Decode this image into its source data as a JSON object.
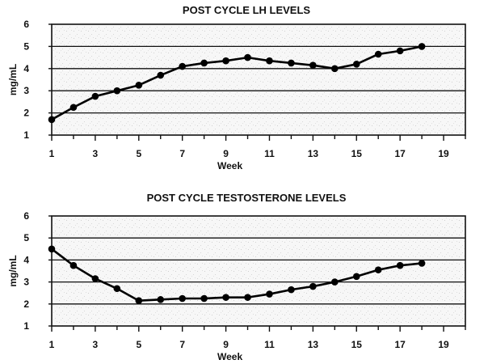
{
  "chart_data": [
    {
      "type": "line",
      "title": "POST CYCLE LH LEVELS",
      "xlabel": "Week",
      "ylabel": "mg/mL",
      "xlim": [
        1,
        20
      ],
      "ylim": [
        1,
        6
      ],
      "xticks": [
        1,
        3,
        5,
        7,
        9,
        11,
        13,
        15,
        17,
        19
      ],
      "yticks": [
        1,
        2,
        3,
        4,
        5,
        6
      ],
      "grid": true,
      "series": [
        {
          "name": "LH",
          "x": [
            1,
            2,
            3,
            4,
            5,
            6,
            7,
            8,
            9,
            10,
            11,
            12,
            13,
            14,
            15,
            16,
            17,
            18
          ],
          "values": [
            1.7,
            2.25,
            2.75,
            3.0,
            3.25,
            3.7,
            4.1,
            4.25,
            4.35,
            4.5,
            4.35,
            4.25,
            4.15,
            4.0,
            4.2,
            4.65,
            4.8,
            5.0
          ]
        }
      ]
    },
    {
      "type": "line",
      "title": "POST CYCLE TESTOSTERONE LEVELS",
      "xlabel": "Week",
      "ylabel": "mg/mL",
      "xlim": [
        1,
        20
      ],
      "ylim": [
        1,
        6
      ],
      "xticks": [
        1,
        3,
        5,
        7,
        9,
        11,
        13,
        15,
        17,
        19
      ],
      "yticks": [
        1,
        2,
        3,
        4,
        5,
        6
      ],
      "grid": true,
      "series": [
        {
          "name": "Testosterone",
          "x": [
            1,
            2,
            3,
            4,
            5,
            6,
            7,
            8,
            9,
            10,
            11,
            12,
            13,
            14,
            15,
            16,
            17,
            18
          ],
          "values": [
            4.5,
            3.75,
            3.15,
            2.7,
            2.15,
            2.2,
            2.25,
            2.25,
            2.3,
            2.3,
            2.45,
            2.65,
            2.8,
            3.0,
            3.25,
            3.55,
            3.75,
            3.85
          ]
        }
      ]
    }
  ]
}
